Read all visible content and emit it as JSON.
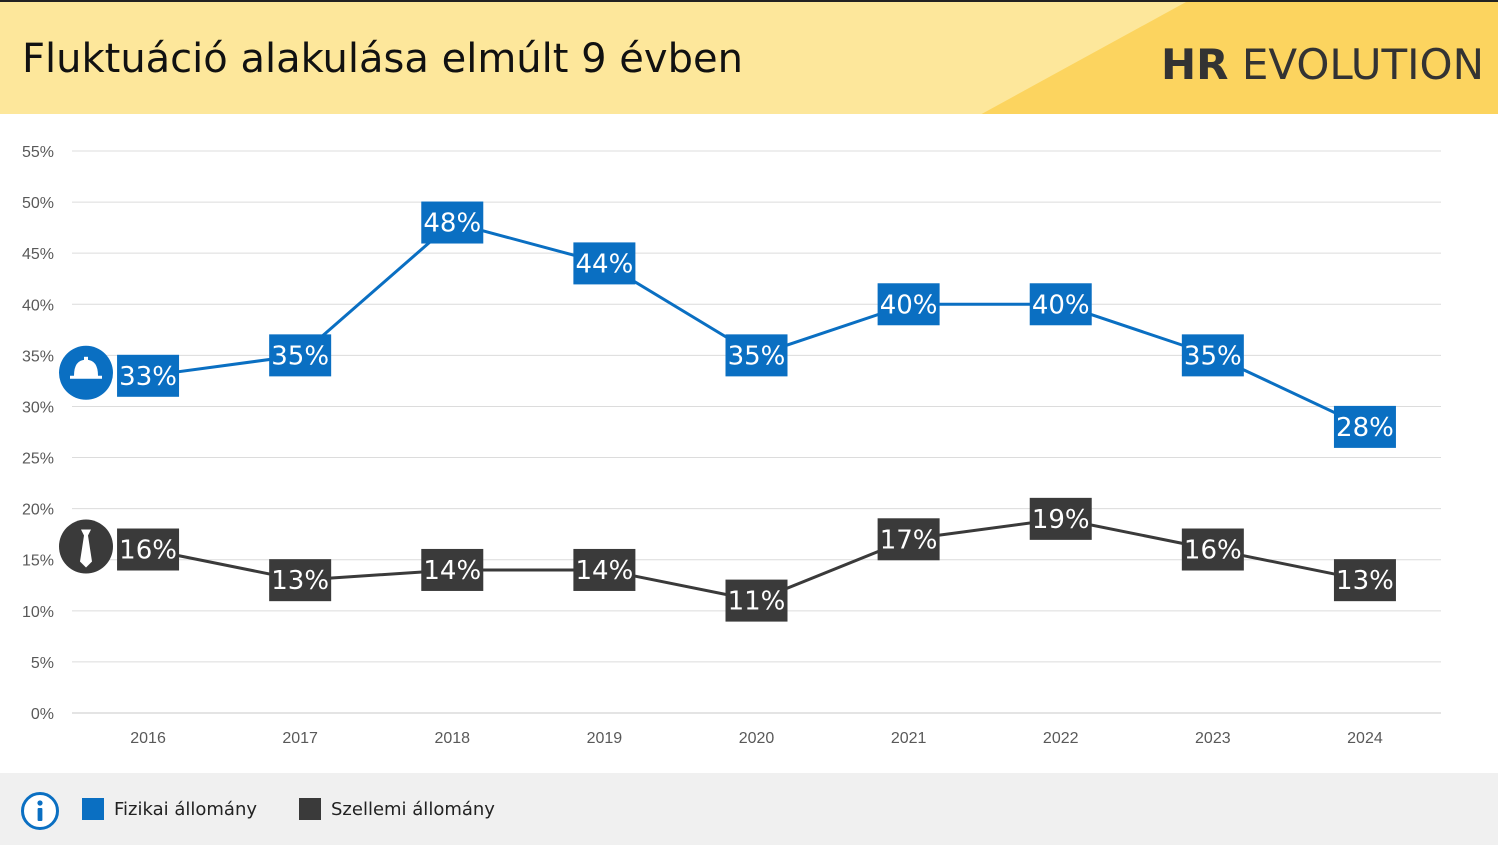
{
  "header": {
    "title": "Fluktuáció alakulása elmúlt 9 évben",
    "brand_bold": "HR",
    "brand_rest": " EVOLUTION"
  },
  "chart_data": {
    "type": "line",
    "categories": [
      "2016",
      "2017",
      "2018",
      "2019",
      "2020",
      "2021",
      "2022",
      "2023",
      "2024"
    ],
    "ylim": [
      0,
      55
    ],
    "yticks": [
      "0%",
      "5%",
      "10%",
      "15%",
      "20%",
      "25%",
      "30%",
      "35%",
      "40%",
      "45%",
      "50%",
      "55%"
    ],
    "grid": true,
    "legend_position": "bottom",
    "series": [
      {
        "name": "Fizikai állomány",
        "color": "#0a6fc2",
        "icon": "hard-hat-icon",
        "values": [
          33,
          35,
          48,
          44,
          35,
          40,
          40,
          35,
          28
        ],
        "labels": [
          "33%",
          "35%",
          "48%",
          "44%",
          "35%",
          "40%",
          "40%",
          "35%",
          "28%"
        ]
      },
      {
        "name": "Szellemi állomány",
        "color": "#3a3a3a",
        "icon": "necktie-icon",
        "values": [
          16,
          13,
          14,
          14,
          11,
          17,
          19,
          16,
          13
        ],
        "labels": [
          "16%",
          "13%",
          "14%",
          "14%",
          "11%",
          "17%",
          "19%",
          "16%",
          "13%"
        ]
      }
    ]
  },
  "footer": {
    "icon": "info-icon",
    "legend": [
      {
        "label": "Fizikai állomány",
        "color": "#0a6fc2"
      },
      {
        "label": "Szellemi állomány",
        "color": "#3a3a3a"
      }
    ]
  }
}
